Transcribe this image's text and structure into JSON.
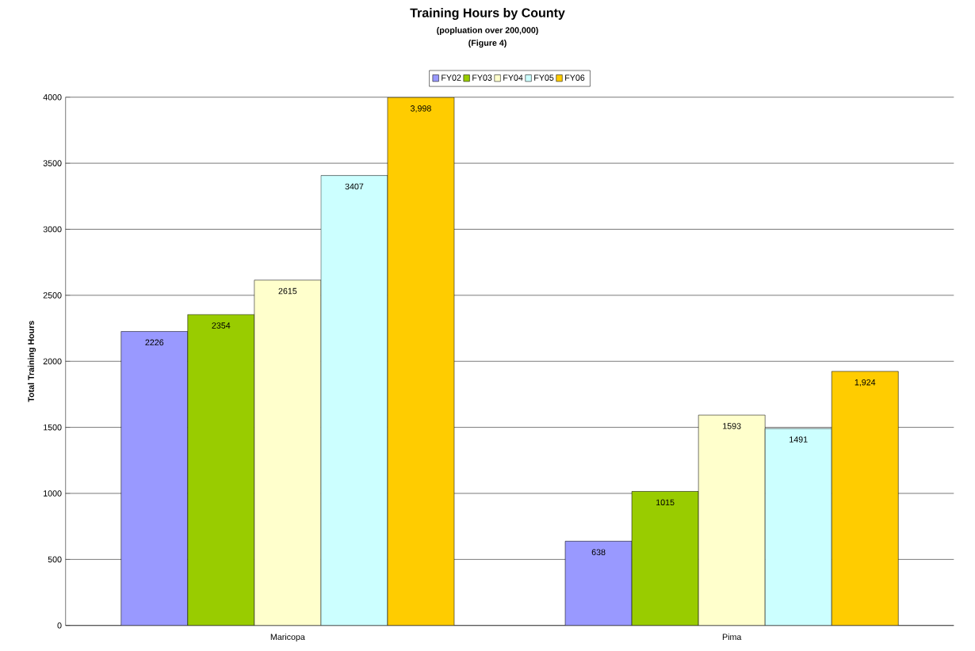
{
  "chart_data": {
    "type": "bar",
    "title": "Training Hours by County",
    "subtitle": "(popluation over 200,000)",
    "annotations": [
      "(Figure 4)"
    ],
    "ylabel": "Total Training Hours",
    "categories": [
      "Maricopa",
      "Pima"
    ],
    "series": [
      {
        "name": "FY02",
        "color": "#9999ff",
        "values": [
          2226,
          638
        ],
        "value_labels": [
          "2226",
          "638"
        ]
      },
      {
        "name": "FY03",
        "color": "#99cc00",
        "values": [
          2354,
          1015
        ],
        "value_labels": [
          "2354",
          "1015"
        ]
      },
      {
        "name": "FY04",
        "color": "#ffffcc",
        "values": [
          2615,
          1593
        ],
        "value_labels": [
          "2615",
          "1593"
        ]
      },
      {
        "name": "FY05",
        "color": "#ccffff",
        "values": [
          3407,
          1491
        ],
        "value_labels": [
          "3407",
          "1491"
        ]
      },
      {
        "name": "FY06",
        "color": "#ffcc00",
        "values": [
          3998,
          1924
        ],
        "value_labels": [
          "3,998",
          "1,924"
        ]
      }
    ],
    "ylim": [
      0,
      4000
    ],
    "yticks": [
      0,
      500,
      1000,
      1500,
      2000,
      2500,
      3000,
      3500,
      4000
    ],
    "grid": "y",
    "legend": "top"
  }
}
